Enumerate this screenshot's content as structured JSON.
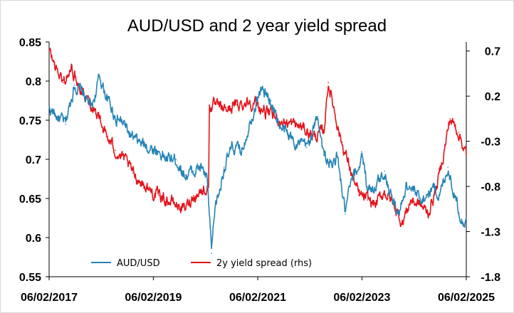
{
  "chart_data": {
    "type": "line",
    "title": "AUD/USD and 2 year yield spread",
    "xlabel": "",
    "ylabel": "",
    "y2label": "",
    "xlim": [
      "2017-02-06",
      "2025-02-06"
    ],
    "ylim": [
      0.55,
      0.85
    ],
    "y2lim": [
      -1.8,
      0.8
    ],
    "x_tick_labels": [
      "06/02/2017",
      "06/02/2019",
      "06/02/2021",
      "06/02/2023",
      "06/02/2025"
    ],
    "y_tick_labels": [
      "0.85",
      "0.8",
      "0.75",
      "0.7",
      "0.65",
      "0.6",
      "0.55"
    ],
    "y2_tick_labels": [
      "0.7",
      "0.2",
      "-0.3",
      "-0.8",
      "-1.3",
      "-1.8"
    ],
    "grid": false,
    "legend": "bottom-left",
    "colors": {
      "aud": "#2584b5",
      "spread": "#e3141c"
    },
    "series": [
      {
        "name": "AUD/USD",
        "axis": "left",
        "x": [
          "2017-02-06",
          "2017-04-01",
          "2017-06-01",
          "2017-08-01",
          "2017-10-01",
          "2017-12-01",
          "2018-01-26",
          "2018-03-15",
          "2018-05-15",
          "2018-07-15",
          "2018-09-15",
          "2018-11-15",
          "2019-01-15",
          "2019-03-15",
          "2019-05-15",
          "2019-07-15",
          "2019-09-15",
          "2019-11-15",
          "2020-01-15",
          "2020-02-20",
          "2020-03-19",
          "2020-04-15",
          "2020-05-15",
          "2020-06-15",
          "2020-08-15",
          "2020-10-15",
          "2020-12-15",
          "2021-02-25",
          "2021-05-10",
          "2021-07-15",
          "2021-09-15",
          "2021-11-15",
          "2022-01-15",
          "2022-04-05",
          "2022-05-15",
          "2022-07-15",
          "2022-08-15",
          "2022-10-13",
          "2022-11-15",
          "2023-01-15",
          "2023-02-03",
          "2023-03-15",
          "2023-05-15",
          "2023-07-15",
          "2023-09-15",
          "2023-10-26",
          "2023-12-15",
          "2024-02-15",
          "2024-04-15",
          "2024-06-15",
          "2024-08-05",
          "2024-09-30",
          "2024-11-15",
          "2025-01-13",
          "2025-02-06"
        ],
        "values": [
          0.765,
          0.755,
          0.745,
          0.795,
          0.785,
          0.765,
          0.805,
          0.78,
          0.755,
          0.745,
          0.725,
          0.72,
          0.715,
          0.71,
          0.7,
          0.7,
          0.68,
          0.685,
          0.69,
          0.67,
          0.58,
          0.64,
          0.66,
          0.69,
          0.715,
          0.71,
          0.75,
          0.79,
          0.775,
          0.74,
          0.73,
          0.72,
          0.715,
          0.755,
          0.705,
          0.69,
          0.705,
          0.63,
          0.665,
          0.69,
          0.71,
          0.665,
          0.665,
          0.685,
          0.645,
          0.63,
          0.67,
          0.655,
          0.65,
          0.665,
          0.655,
          0.69,
          0.655,
          0.62,
          0.625
        ]
      },
      {
        "name": "2y yield spread (rhs)",
        "axis": "right",
        "x": [
          "2017-02-06",
          "2017-03-15",
          "2017-05-15",
          "2017-07-15",
          "2017-09-15",
          "2017-11-15",
          "2018-01-15",
          "2018-03-15",
          "2018-05-15",
          "2018-07-15",
          "2018-09-15",
          "2018-11-15",
          "2019-01-15",
          "2019-03-15",
          "2019-05-15",
          "2019-07-15",
          "2019-09-15",
          "2019-11-15",
          "2020-01-15",
          "2020-02-28",
          "2020-03-05",
          "2020-06-15",
          "2020-09-15",
          "2020-12-15",
          "2021-03-15",
          "2021-06-15",
          "2021-09-15",
          "2021-12-15",
          "2022-03-15",
          "2022-05-15",
          "2022-06-15",
          "2022-09-15",
          "2022-11-15",
          "2023-01-15",
          "2023-03-15",
          "2023-05-15",
          "2023-07-15",
          "2023-09-15",
          "2023-11-15",
          "2024-01-15",
          "2024-03-15",
          "2024-05-15",
          "2024-07-15",
          "2024-09-10",
          "2024-10-15",
          "2024-12-15",
          "2025-02-06"
        ],
        "values": [
          0.7,
          0.55,
          0.35,
          0.5,
          0.3,
          0.15,
          0.0,
          -0.25,
          -0.4,
          -0.5,
          -0.65,
          -0.75,
          -0.85,
          -0.9,
          -0.95,
          -1.0,
          -1.05,
          -0.9,
          -0.85,
          -0.8,
          0.1,
          0.05,
          0.1,
          0.15,
          0.05,
          -0.05,
          -0.1,
          -0.15,
          -0.25,
          -0.2,
          0.35,
          -0.3,
          -0.6,
          -0.9,
          -0.95,
          -1.0,
          -0.85,
          -1.0,
          -1.2,
          -0.95,
          -1.0,
          -1.1,
          -0.8,
          -0.35,
          -0.05,
          -0.2,
          -0.45
        ]
      }
    ]
  }
}
